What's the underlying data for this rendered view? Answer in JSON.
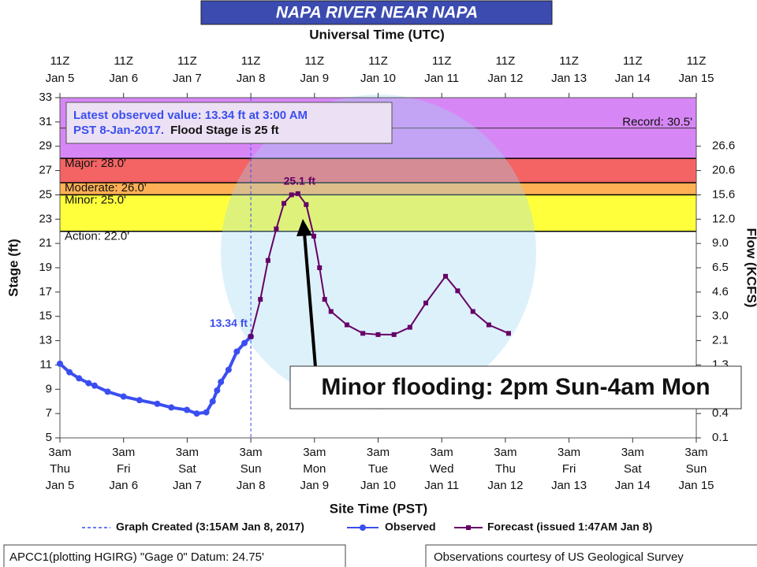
{
  "chart_data": {
    "type": "line",
    "title": "NAPA RIVER NEAR NAPA",
    "subtitle": "Universal Time (UTC)",
    "x_label": "Site Time (PST)",
    "y_label": "Stage (ft)",
    "y2_label": "Flow (KCFS)",
    "xlim": [
      0,
      10
    ],
    "xticks": [
      0,
      1,
      2,
      3,
      4,
      5,
      6,
      7,
      8,
      9,
      10
    ],
    "x_top_labels": [
      {
        "utc": "11Z",
        "date": "Jan 5"
      },
      {
        "utc": "11Z",
        "date": "Jan 6"
      },
      {
        "utc": "11Z",
        "date": "Jan 7"
      },
      {
        "utc": "11Z",
        "date": "Jan 8"
      },
      {
        "utc": "11Z",
        "date": "Jan 9"
      },
      {
        "utc": "11Z",
        "date": "Jan 10"
      },
      {
        "utc": "11Z",
        "date": "Jan 11"
      },
      {
        "utc": "11Z",
        "date": "Jan 12"
      },
      {
        "utc": "11Z",
        "date": "Jan 13"
      },
      {
        "utc": "11Z",
        "date": "Jan 14"
      },
      {
        "utc": "11Z",
        "date": "Jan 15"
      }
    ],
    "x_bottom_labels": [
      {
        "time": "3am",
        "day": "Thu",
        "date": "Jan 5"
      },
      {
        "time": "3am",
        "day": "Fri",
        "date": "Jan 6"
      },
      {
        "time": "3am",
        "day": "Sat",
        "date": "Jan 7"
      },
      {
        "time": "3am",
        "day": "Sun",
        "date": "Jan 8"
      },
      {
        "time": "3am",
        "day": "Mon",
        "date": "Jan 9"
      },
      {
        "time": "3am",
        "day": "Tue",
        "date": "Jan 10"
      },
      {
        "time": "3am",
        "day": "Wed",
        "date": "Jan 11"
      },
      {
        "time": "3am",
        "day": "Thu",
        "date": "Jan 12"
      },
      {
        "time": "3am",
        "day": "Fri",
        "date": "Jan 13"
      },
      {
        "time": "3am",
        "day": "Sat",
        "date": "Jan 14"
      },
      {
        "time": "3am",
        "day": "Sun",
        "date": "Jan 15"
      }
    ],
    "ylim": [
      5,
      33
    ],
    "yticks": [
      5,
      7,
      9,
      11,
      13,
      15,
      17,
      19,
      21,
      23,
      25,
      27,
      29,
      31,
      33
    ],
    "y2_rating": {
      "stage": [
        5,
        7,
        11,
        13,
        15,
        17,
        19,
        21,
        23,
        25,
        27,
        29
      ],
      "flow": [
        0.1,
        0.4,
        1.3,
        2.1,
        {
          "value": 3,
          "label": "3.0"
        },
        4.6,
        6.5,
        {
          "value": 9,
          "label": "9.0"
        },
        {
          "value": 12,
          "label": "12.0"
        },
        15.6,
        20.6,
        26.6
      ]
    },
    "flood_categories": [
      {
        "label": "Action: 22.0'",
        "value": 22,
        "color": "#ffff3c"
      },
      {
        "label": "Minor: 25.0'",
        "value": 25,
        "color": "#ffb054"
      },
      {
        "label": "Moderate: 26.0'",
        "value": 26,
        "color": "#f46464"
      },
      {
        "label": "Major: 28.0'",
        "value": 28,
        "color": "#d787f5"
      }
    ],
    "record": {
      "label": "Record: 30.5'",
      "value": 30.5
    },
    "graph_created": {
      "label": "Graph Created (3:15AM Jan 8, 2017)",
      "x": 3
    },
    "series": [
      {
        "name": "Observed",
        "color": "#3a4ef0",
        "x": [
          0,
          0.15,
          0.3,
          0.45,
          0.545,
          0.75,
          1.0,
          1.25,
          1.53,
          1.75,
          1.995,
          2.15,
          2.3,
          2.4,
          2.47,
          2.53,
          2.65,
          2.78,
          2.9,
          3.0
        ],
        "values": [
          11.1,
          10.4,
          9.9,
          9.5,
          9.3,
          8.8,
          8.4,
          8.1,
          7.8,
          7.5,
          7.3,
          7.0,
          7.1,
          8.0,
          8.9,
          9.6,
          10.6,
          12.1,
          12.8,
          13.34
        ]
      },
      {
        "name": "Forecast (issued 1:47AM Jan 8)",
        "color": "#660066",
        "x": [
          3.0,
          3.15,
          3.27,
          3.4,
          3.52,
          3.64,
          3.74,
          3.87,
          3.99,
          4.08,
          4.16,
          4.26,
          4.51,
          4.76,
          5.0,
          5.25,
          5.5,
          5.75,
          6.06,
          6.25,
          6.49,
          6.74,
          7.05
        ],
        "values": [
          13.34,
          16.4,
          19.6,
          22.2,
          24.3,
          25.0,
          25.1,
          24.2,
          21.6,
          19.0,
          16.4,
          15.4,
          14.3,
          13.6,
          13.5,
          13.5,
          14.1,
          16.1,
          18.3,
          17.1,
          15.4,
          14.3,
          13.6
        ]
      }
    ],
    "annotations": [
      {
        "text": "13.34 ft",
        "x": 3.0,
        "y": 13.34
      },
      {
        "text": "25.1 ft",
        "x": 3.74,
        "y": 25.1
      }
    ],
    "info_box": {
      "line1": "Latest observed value: 13.34 ft at 3:00 AM",
      "line2": "PST 8-Jan-2017.",
      "line2_extra": "Flood Stage is 25 ft"
    },
    "callout": "Minor flooding: 2pm Sun-4am Mon",
    "footer_left": "APCC1(plotting HGIRG) \"Gage 0\" Datum: 24.75'",
    "footer_right": "Observations courtesy of US Geological Survey",
    "legend": "bottom"
  }
}
